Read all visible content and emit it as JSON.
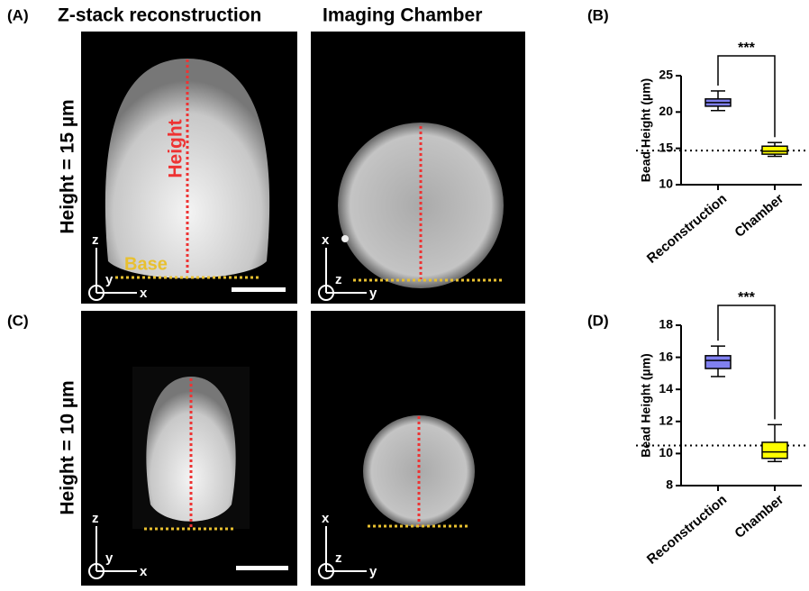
{
  "figure": {
    "panel_a": "(A)",
    "panel_c": "(C)",
    "col1": "Z-stack reconstruction",
    "col2": "Imaging Chamber",
    "row1": "Height = 15 µm",
    "row2": "Height = 10 µm",
    "height_label": "Height",
    "base_label": "Base",
    "axes_a1": [
      "z",
      "y",
      "x"
    ],
    "axes_a2": [
      "x",
      "z",
      "y"
    ],
    "axes_c1": [
      "z",
      "y",
      "x"
    ],
    "axes_c2": [
      "x",
      "z",
      "y"
    ]
  },
  "chart_data": [
    {
      "type": "box",
      "panel": "(B)",
      "ylabel": "Bead Height (µm)",
      "categories": [
        "Reconstruction",
        "Chamber"
      ],
      "boxes": [
        {
          "min": 20.2,
          "q1": 20.8,
          "median": 21.3,
          "q3": 21.8,
          "max": 22.9,
          "color": "#8080f0"
        },
        {
          "min": 13.9,
          "q1": 14.2,
          "median": 14.6,
          "q3": 15.3,
          "max": 15.8,
          "color": "#ffff00"
        }
      ],
      "reference_line": 14.7,
      "annotation": "***",
      "ylim": [
        10,
        25
      ],
      "yticks": [
        10,
        15,
        20,
        25
      ]
    },
    {
      "type": "box",
      "panel": "(D)",
      "ylabel": "Bead Height (µm)",
      "categories": [
        "Reconstruction",
        "Chamber"
      ],
      "boxes": [
        {
          "min": 14.8,
          "q1": 15.3,
          "median": 15.8,
          "q3": 16.1,
          "max": 16.7,
          "color": "#8080f0"
        },
        {
          "min": 9.5,
          "q1": 9.7,
          "median": 10.1,
          "q3": 10.7,
          "max": 11.8,
          "color": "#ffff00"
        }
      ],
      "reference_line": 10.5,
      "annotation": "***",
      "ylim": [
        8,
        18
      ],
      "yticks": [
        8,
        10,
        12,
        14,
        16,
        18
      ]
    }
  ]
}
